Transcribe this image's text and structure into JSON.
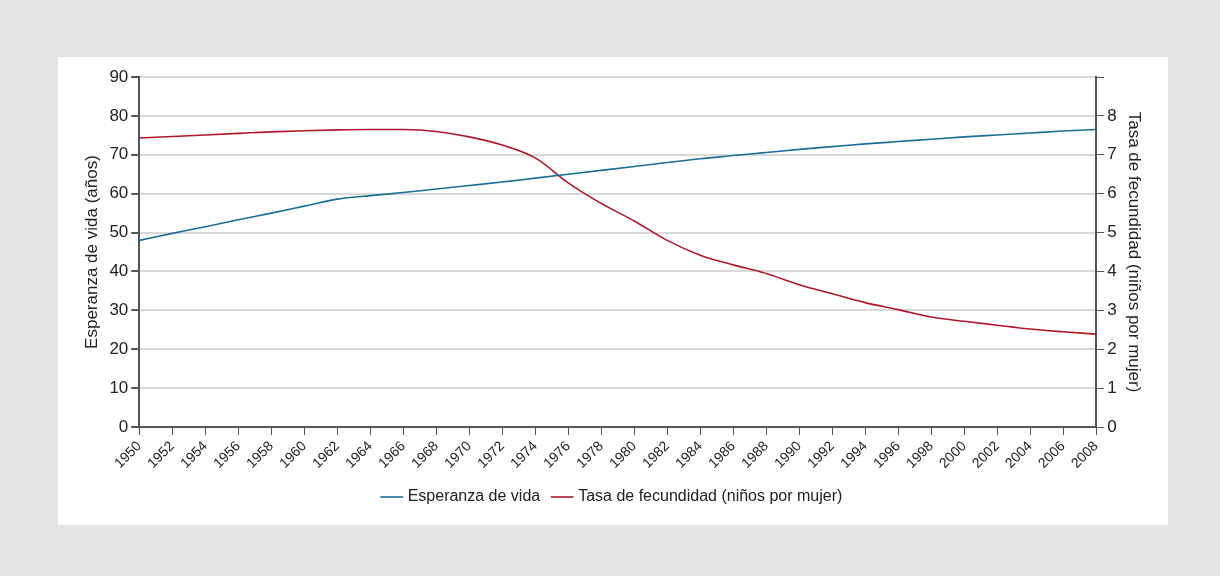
{
  "chart_data": {
    "type": "line",
    "categories": [
      "1950",
      "1952",
      "1954",
      "1956",
      "1958",
      "1960",
      "1962",
      "1964",
      "1966",
      "1968",
      "1970",
      "1972",
      "1974",
      "1976",
      "1978",
      "1980",
      "1982",
      "1984",
      "1986",
      "1988",
      "1990",
      "1992",
      "1994",
      "1996",
      "1998",
      "2000",
      "2002",
      "2004",
      "2006",
      "2008"
    ],
    "ylabel": "Esperanza de vida (años)",
    "y2label": "Tasa de fecundidad (niños por mujer)",
    "ylim": [
      0,
      90
    ],
    "yticks": [
      0,
      10,
      20,
      30,
      40,
      50,
      60,
      70,
      80,
      90
    ],
    "y2lim": [
      0,
      9
    ],
    "y2ticks": [
      0,
      1,
      2,
      3,
      4,
      5,
      6,
      7,
      8,
      {
        "value": 9,
        "label": null
      }
    ],
    "grid": "y",
    "legend": "bottom",
    "series": [
      {
        "name": "Esperanza de vida",
        "color": "#1b6f97",
        "values": [
          48.0,
          49.8,
          51.5,
          53.3,
          55.0,
          56.8,
          58.6,
          59.5,
          60.3,
          61.2,
          62.1,
          63.0,
          64.0,
          65.0,
          66.0,
          67.0,
          68.0,
          69.0,
          69.8,
          70.6,
          71.4,
          72.1,
          72.8,
          73.4,
          74.0,
          74.6,
          75.1,
          75.6,
          76.1,
          76.5
        ]
      },
      {
        "name": "Tasa de fecundidad (niños por mujer)",
        "color": "#b0182a",
        "axis": "y2",
        "values": [
          7.43,
          7.47,
          7.51,
          7.55,
          7.59,
          7.62,
          7.64,
          7.65,
          7.65,
          7.6,
          7.46,
          7.25,
          6.92,
          6.28,
          5.75,
          5.3,
          4.8,
          4.42,
          4.17,
          3.95,
          3.66,
          3.43,
          3.2,
          3.02,
          2.83,
          2.72,
          2.62,
          2.52,
          2.45,
          2.39
        ]
      }
    ]
  }
}
